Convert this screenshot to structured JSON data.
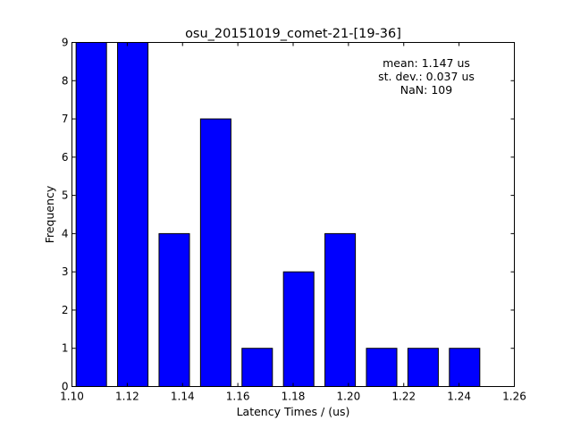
{
  "chart_data": {
    "type": "bar",
    "title": "osu_20151019_comet-21-[19-36]",
    "xlabel": "Latency Times / (us)",
    "ylabel": "Frequency",
    "xlim": [
      1.1,
      1.26
    ],
    "ylim": [
      0,
      9
    ],
    "xticks": [
      "1.10",
      "1.12",
      "1.14",
      "1.16",
      "1.18",
      "1.20",
      "1.22",
      "1.24",
      "1.26"
    ],
    "yticks": [
      "0",
      "1",
      "2",
      "3",
      "4",
      "5",
      "6",
      "7",
      "8",
      "9"
    ],
    "bar_color": "#0000ff",
    "bins": [
      {
        "start": 1.1015,
        "end": 1.1125,
        "value": 9
      },
      {
        "start": 1.1165,
        "end": 1.1275,
        "value": 9
      },
      {
        "start": 1.1315,
        "end": 1.1425,
        "value": 4
      },
      {
        "start": 1.1465,
        "end": 1.1575,
        "value": 7
      },
      {
        "start": 1.1615,
        "end": 1.1725,
        "value": 1
      },
      {
        "start": 1.1765,
        "end": 1.1875,
        "value": 3
      },
      {
        "start": 1.1915,
        "end": 1.2025,
        "value": 4
      },
      {
        "start": 1.2065,
        "end": 1.2175,
        "value": 1
      },
      {
        "start": 1.2215,
        "end": 1.2325,
        "value": 1
      },
      {
        "start": 1.2365,
        "end": 1.2475,
        "value": 1
      }
    ],
    "annotations": {
      "mean": "mean: 1.147 us",
      "stdev": "st. dev.: 0.037 us",
      "nan": "NaN: 109"
    },
    "grid": false
  }
}
